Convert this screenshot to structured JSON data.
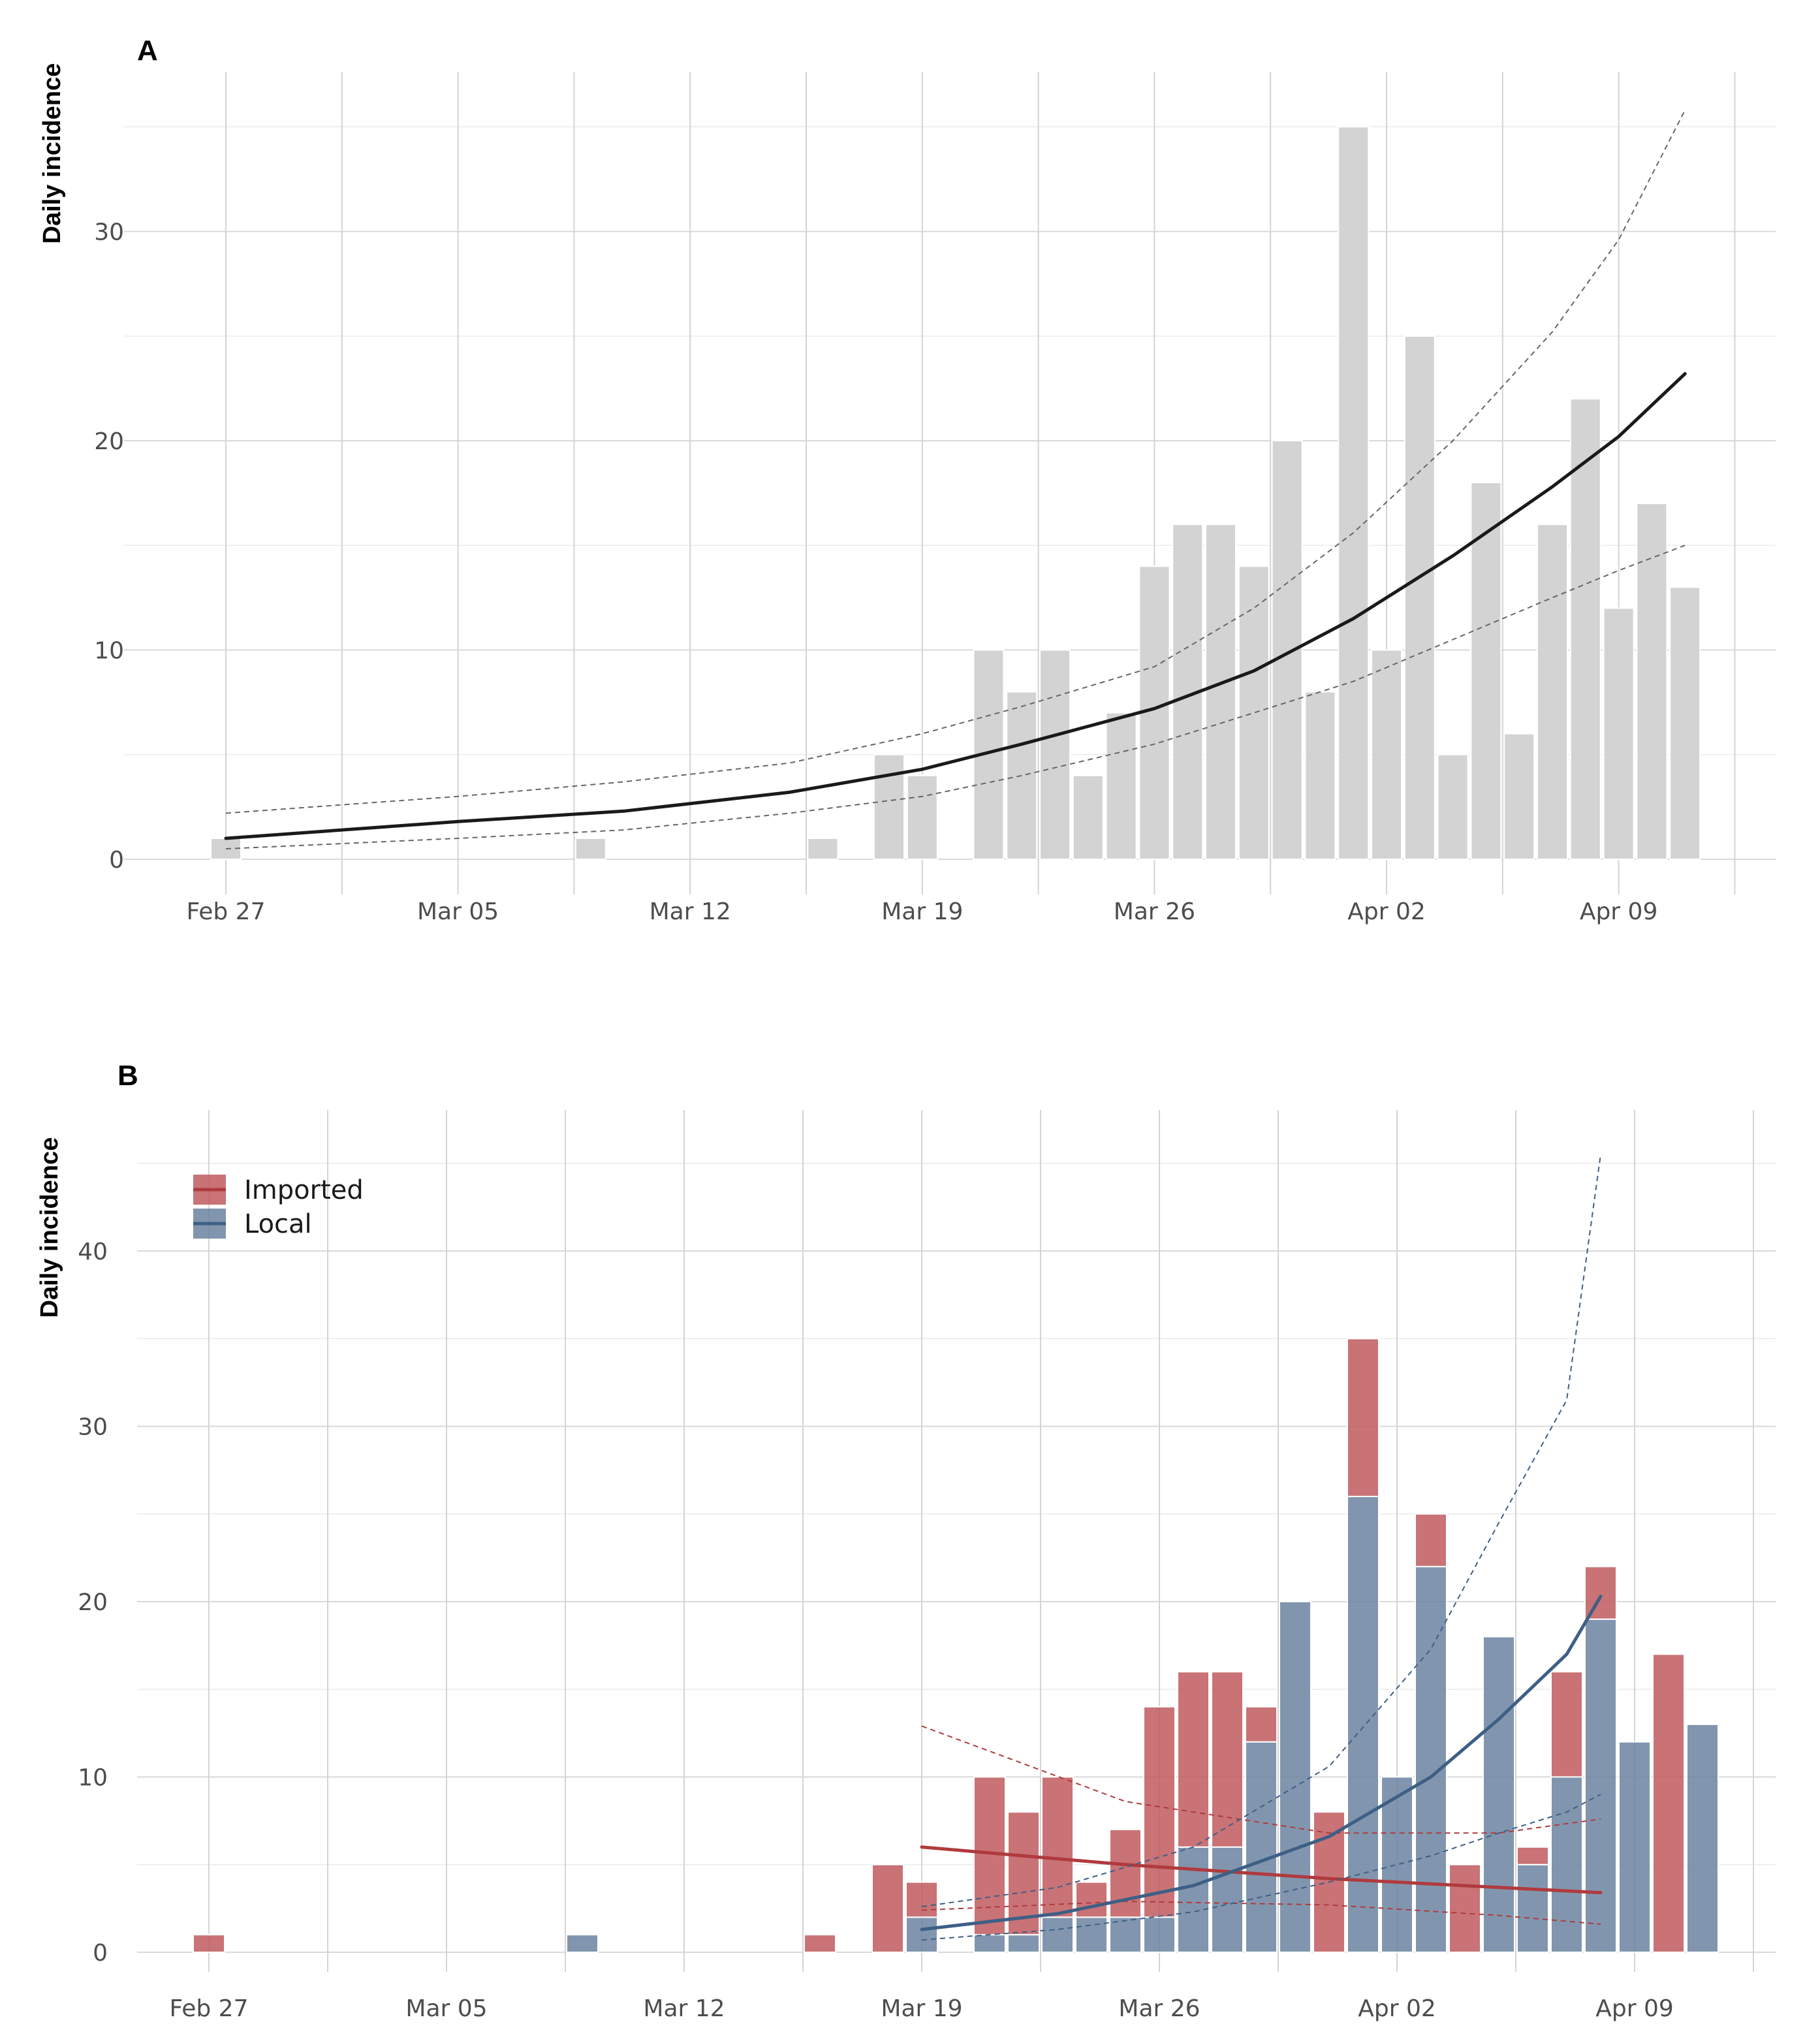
{
  "chart_data": [
    {
      "type": "bar",
      "panel_label": "A",
      "ylabel": "Daily incidence",
      "xlabel": "",
      "x_tick_labels": [
        "Feb 27",
        "Mar 05",
        "Mar 12",
        "Mar 19",
        "Mar 26",
        "Apr 02",
        "Apr 09"
      ],
      "x_tick_dates": [
        "2020-02-27",
        "2020-03-05",
        "2020-03-12",
        "2020-03-19",
        "2020-03-26",
        "2020-04-02",
        "2020-04-09"
      ],
      "y_tick_labels": [
        "0",
        "10",
        "20",
        "30"
      ],
      "y_ticks": [
        0,
        10,
        20,
        30
      ],
      "ylim": [
        0,
        36
      ],
      "xlim": [
        "2020-02-24",
        "2020-04-13"
      ],
      "grid": true,
      "colors": {
        "bar": "#d3d3d3",
        "fit": "#1a1a1a",
        "ci": "#666666"
      },
      "dates": [
        "2020-02-27",
        "2020-02-28",
        "2020-02-29",
        "2020-03-01",
        "2020-03-02",
        "2020-03-03",
        "2020-03-04",
        "2020-03-05",
        "2020-03-06",
        "2020-03-07",
        "2020-03-08",
        "2020-03-09",
        "2020-03-10",
        "2020-03-11",
        "2020-03-12",
        "2020-03-13",
        "2020-03-14",
        "2020-03-15",
        "2020-03-16",
        "2020-03-17",
        "2020-03-18",
        "2020-03-19",
        "2020-03-20",
        "2020-03-21",
        "2020-03-22",
        "2020-03-23",
        "2020-03-24",
        "2020-03-25",
        "2020-03-26",
        "2020-03-27",
        "2020-03-28",
        "2020-03-29",
        "2020-03-30",
        "2020-03-31",
        "2020-04-01",
        "2020-04-02",
        "2020-04-03",
        "2020-04-04",
        "2020-04-05",
        "2020-04-06",
        "2020-04-07",
        "2020-04-08",
        "2020-04-09",
        "2020-04-10",
        "2020-04-11"
      ],
      "values": [
        1,
        0,
        0,
        0,
        0,
        0,
        0,
        0,
        0,
        0,
        0,
        1,
        0,
        0,
        0,
        0,
        0,
        0,
        1,
        0,
        5,
        4,
        0,
        10,
        8,
        10,
        4,
        7,
        14,
        16,
        16,
        14,
        20,
        8,
        35,
        10,
        25,
        5,
        18,
        6,
        16,
        22,
        12,
        17,
        13
      ],
      "fit": {
        "x": [
          "2020-02-27",
          "2020-03-05",
          "2020-03-10",
          "2020-03-15",
          "2020-03-19",
          "2020-03-22",
          "2020-03-26",
          "2020-03-29",
          "2020-04-01",
          "2020-04-04",
          "2020-04-07",
          "2020-04-09",
          "2020-04-11"
        ],
        "estimate": [
          1.0,
          1.8,
          2.3,
          3.2,
          4.3,
          5.5,
          7.2,
          9.0,
          11.5,
          14.5,
          17.8,
          20.2,
          23.2
        ],
        "lower": [
          0.5,
          1.0,
          1.4,
          2.2,
          3.0,
          4.0,
          5.5,
          7.0,
          8.5,
          10.5,
          12.5,
          13.8,
          15.0
        ],
        "upper": [
          2.2,
          3.0,
          3.7,
          4.6,
          6.0,
          7.3,
          9.2,
          12.0,
          15.6,
          20.0,
          25.2,
          29.6,
          35.8
        ]
      }
    },
    {
      "type": "bar",
      "stacked": true,
      "panel_label": "B",
      "ylabel": "Daily incidence",
      "xlabel": "",
      "x_tick_labels": [
        "Feb 27",
        "Mar 05",
        "Mar 12",
        "Mar 19",
        "Mar 26",
        "Apr 02",
        "Apr 09"
      ],
      "x_tick_dates": [
        "2020-02-27",
        "2020-03-05",
        "2020-03-12",
        "2020-03-19",
        "2020-03-26",
        "2020-04-02",
        "2020-04-09"
      ],
      "y_tick_labels": [
        "0",
        "10",
        "20",
        "30",
        "40"
      ],
      "y_ticks": [
        0,
        10,
        20,
        30,
        40
      ],
      "ylim": [
        -1,
        48
      ],
      "xlim": [
        "2020-02-23",
        "2020-04-13"
      ],
      "grid": true,
      "legend": {
        "position": "top-left",
        "entries": [
          "Imported",
          "Local"
        ]
      },
      "dates": [
        "2020-02-27",
        "2020-02-28",
        "2020-02-29",
        "2020-03-01",
        "2020-03-02",
        "2020-03-03",
        "2020-03-04",
        "2020-03-05",
        "2020-03-06",
        "2020-03-07",
        "2020-03-08",
        "2020-03-09",
        "2020-03-10",
        "2020-03-11",
        "2020-03-12",
        "2020-03-13",
        "2020-03-14",
        "2020-03-15",
        "2020-03-16",
        "2020-03-17",
        "2020-03-18",
        "2020-03-19",
        "2020-03-20",
        "2020-03-21",
        "2020-03-22",
        "2020-03-23",
        "2020-03-24",
        "2020-03-25",
        "2020-03-26",
        "2020-03-27",
        "2020-03-28",
        "2020-03-29",
        "2020-03-30",
        "2020-03-31",
        "2020-04-01",
        "2020-04-02",
        "2020-04-03",
        "2020-04-04",
        "2020-04-05",
        "2020-04-06",
        "2020-04-07",
        "2020-04-08",
        "2020-04-09",
        "2020-04-10",
        "2020-04-11"
      ],
      "series": [
        {
          "name": "Local",
          "color": "#6b84a0",
          "values": [
            0,
            0,
            0,
            0,
            0,
            0,
            0,
            0,
            0,
            0,
            0,
            1,
            0,
            0,
            0,
            0,
            0,
            0,
            0,
            0,
            0,
            2,
            0,
            1,
            1,
            2,
            2,
            2,
            2,
            6,
            6,
            12,
            20,
            0,
            26,
            10,
            22,
            0,
            18,
            5,
            10,
            19,
            12,
            0,
            13
          ]
        },
        {
          "name": "Imported",
          "color": "#bf5a5e",
          "values": [
            1,
            0,
            0,
            0,
            0,
            0,
            0,
            0,
            0,
            0,
            0,
            0,
            0,
            0,
            0,
            0,
            0,
            0,
            1,
            0,
            5,
            2,
            0,
            9,
            7,
            8,
            2,
            5,
            12,
            10,
            10,
            2,
            0,
            8,
            9,
            0,
            3,
            5,
            0,
            1,
            6,
            3,
            0,
            17,
            0
          ]
        }
      ],
      "fits": [
        {
          "name": "Imported",
          "color": "#b03a3e",
          "x": [
            "2020-03-19",
            "2020-03-25",
            "2020-03-31",
            "2020-04-05",
            "2020-04-08"
          ],
          "estimate": [
            6.0,
            5.0,
            4.2,
            3.7,
            3.4
          ],
          "lower": [
            2.4,
            2.9,
            2.7,
            2.1,
            1.6
          ],
          "upper": [
            12.9,
            8.6,
            6.8,
            6.8,
            7.6
          ]
        },
        {
          "name": "Local",
          "color": "#3e5f85",
          "x": [
            "2020-03-19",
            "2020-03-23",
            "2020-03-27",
            "2020-03-31",
            "2020-04-03",
            "2020-04-05",
            "2020-04-07",
            "2020-04-08"
          ],
          "estimate": [
            1.3,
            2.2,
            3.8,
            6.6,
            10.0,
            13.3,
            17.0,
            20.3
          ],
          "lower": [
            0.7,
            1.3,
            2.3,
            4.0,
            5.5,
            6.8,
            8.0,
            9.0
          ],
          "upper": [
            2.6,
            3.7,
            6.0,
            10.6,
            17.3,
            24.5,
            31.5,
            45.5
          ]
        }
      ]
    }
  ]
}
